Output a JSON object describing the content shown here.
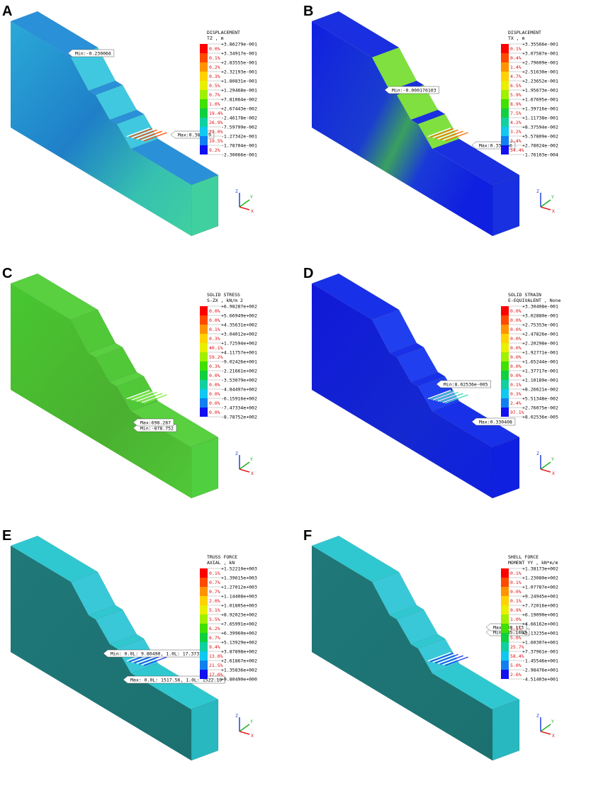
{
  "triad": {
    "z": "Z",
    "y": "Y",
    "x": "X"
  },
  "panels": [
    {
      "letter": "A",
      "legend": {
        "title": [
          "DISPLACEMENT",
          "TZ , m"
        ],
        "values": [
          "+3.86279e-001",
          "+3.34917e-001",
          "+2.83555e-001",
          "+2.32193e-001",
          "+1.80831e-001",
          "+1.29468e-001",
          "+7.81064e-002",
          "+2.67443e-002",
          "-2.46178e-002",
          "-7.59799e-002",
          "-1.27342e-001",
          "-1.78704e-001",
          "-2.30066e-001"
        ],
        "percents": [
          "0.0%",
          "0.1%",
          "0.2%",
          "0.3%",
          "0.5%",
          "0.7%",
          "1.0%",
          "19.4%",
          "26.9%",
          "22.0%",
          "19.5%",
          "9.2%"
        ]
      },
      "min": "Min:-0.230066",
      "max": "Max:0.386279"
    },
    {
      "letter": "B",
      "legend": {
        "title": [
          "DISPLACEMENT",
          "TX , m"
        ],
        "values": [
          "+3.35566e-001",
          "+3.07587e-001",
          "+2.79609e-001",
          "+2.51630e-001",
          "+2.23652e-001",
          "+1.95673e-001",
          "+1.67695e-001",
          "+1.39716e-001",
          "+1.11738e-001",
          "+8.37594e-002",
          "+5.57809e-002",
          "+2.78024e-002",
          "-1.76103e-004"
        ],
        "percents": [
          "0.1%",
          "0.4%",
          "1.4%",
          "4.7%",
          "6.5%",
          "5.9%",
          "8.9%",
          "7.5%",
          "4.2%",
          "3.2%",
          "3.4%",
          "54.4%"
        ]
      },
      "min": "Min:-0.000176103",
      "max": "Max:0.335566"
    },
    {
      "letter": "C",
      "legend": {
        "title": [
          "SOLID STRESS",
          "S-ZX , kN/m 2"
        ],
        "values": [
          "+6.98287e+002",
          "+5.66949e+002",
          "+4.35631e+002",
          "+3.04012e+002",
          "+1.72594e+002",
          "+4.11757e+001",
          "-9.02426e+001",
          "-2.21661e+002",
          "-3.53079e+002",
          "-4.84497e+002",
          "-6.15916e+002",
          "-7.47334e+002",
          "-8.78752e+002"
        ],
        "percents": [
          "0.0%",
          "0.0%",
          "0.1%",
          "0.3%",
          "40.1%",
          "59.2%",
          "0.3%",
          "0.0%",
          "0.0%",
          "0.0%",
          "0.0%",
          "0.0%"
        ]
      },
      "min": "Min:-878.752",
      "max": "Max:698.287"
    },
    {
      "letter": "D",
      "legend": {
        "title": [
          "SOLID STRAIN",
          "E-EQUIVALENT , None"
        ],
        "values": [
          "+3.30408e-001",
          "+3.02880e-001",
          "+2.75353e-001",
          "+2.47826e-001",
          "+2.20298e-001",
          "+1.92771e-001",
          "+1.65244e-001",
          "+1.37717e-001",
          "+1.10189e-001",
          "+8.26621e-002",
          "+5.51348e-002",
          "+2.76075e-002",
          "+8.02536e-005"
        ],
        "percents": [
          "0.0%",
          "0.0%",
          "0.0%",
          "0.0%",
          "0.0%",
          "0.0%",
          "0.0%",
          "0.0%",
          "0.1%",
          "0.3%",
          "2.4%",
          "97.1%"
        ]
      },
      "min": "Min:8.02536e-005",
      "max": "Max:0.330408"
    },
    {
      "letter": "E",
      "legend": {
        "title": [
          "TRUSS FORCE",
          "AXIAL , kN"
        ],
        "values": [
          "+1.52210e+003",
          "+1.39615e+003",
          "+1.27012e+003",
          "+1.14408e+003",
          "+1.01805e+003",
          "+8.92023e+002",
          "+7.65991e+002",
          "+6.39960e+002",
          "+5.13929e+002",
          "+3.87898e+002",
          "+2.61867e+002",
          "+1.35836e+002",
          "+9.80490e+000"
        ],
        "percents": [
          "0.1%",
          "0.7%",
          "0.7%",
          "2.0%",
          "5.1%",
          "5.5%",
          "6.2%",
          "6.7%",
          "9.4%",
          "13.0%",
          "21.5%",
          "17.0%"
        ]
      },
      "min": "Min: 0.0L: 9.80490, 1.0L: 17.3732",
      "max": "Max: 0.0L: 1517.56, 1.0L: 1522.10"
    },
    {
      "letter": "F",
      "legend": {
        "title": [
          "SHELL FORCE",
          "MOMENT YY , kN*m/m"
        ],
        "values": [
          "+1.38173e+002",
          "+1.23080e+002",
          "+1.07787e+002",
          "+9.24945e+001",
          "+7.72016e+001",
          "+6.19090e+001",
          "+4.66162e+001",
          "+3.13235e+001",
          "+1.60307e+001",
          "+7.37961e-001",
          "-1.45546e+001",
          "-2.98476e+001",
          "-4.51403e+001"
        ],
        "percents": [
          "0.1%",
          "0.1%",
          "0.0%",
          "0.1%",
          "0.9%",
          "1.0%",
          "1.1%",
          "5.0%",
          "25.7%",
          "58.4%",
          "5.0%",
          "2.6%"
        ]
      },
      "min": "Min:-45.1403",
      "max": "Max:138.173"
    }
  ]
}
